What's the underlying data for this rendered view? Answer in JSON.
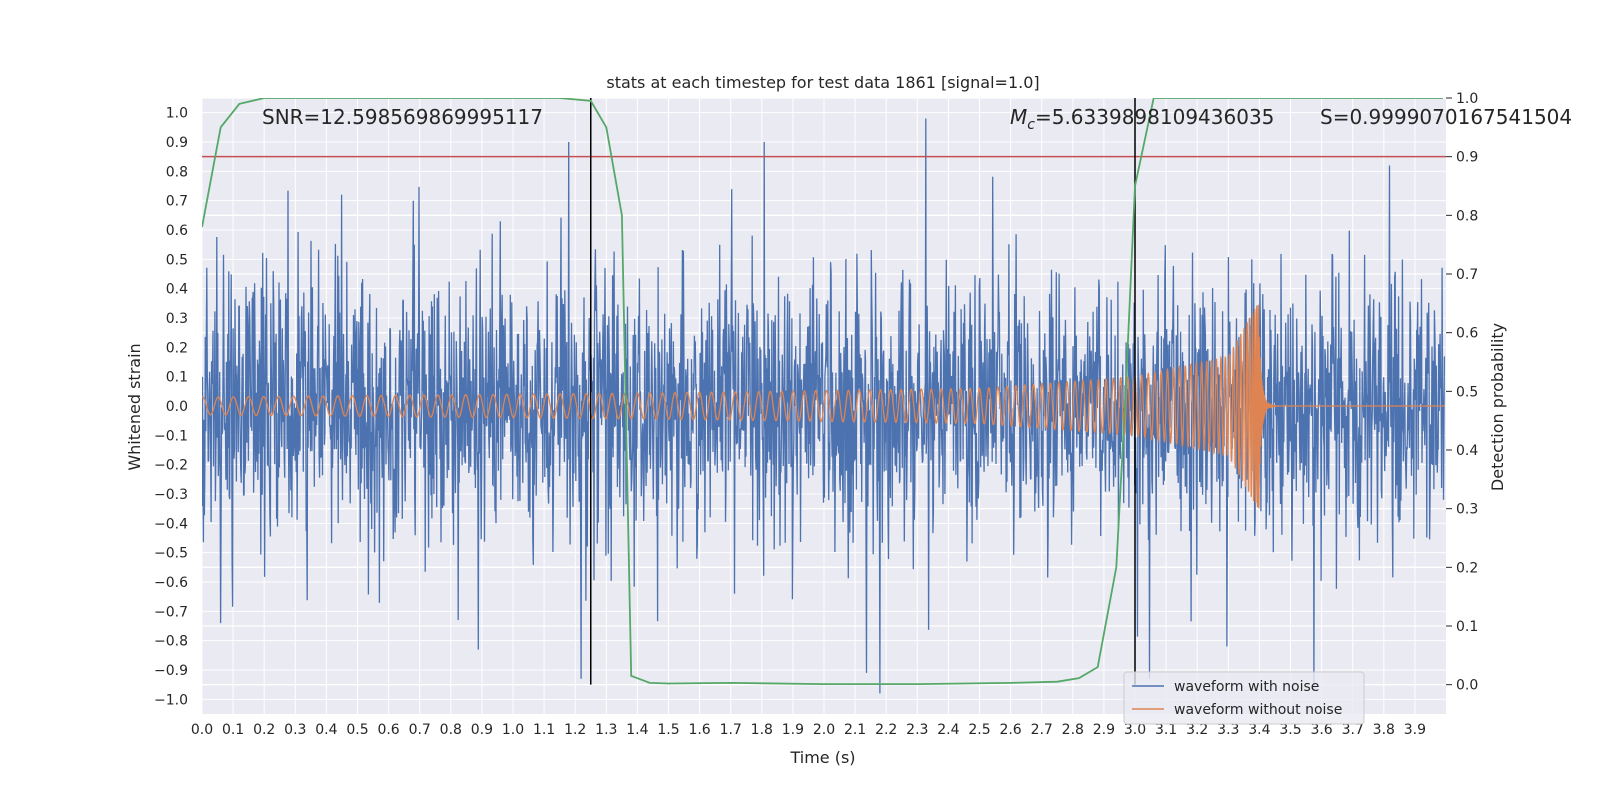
{
  "chart_data": {
    "type": "line",
    "title": "stats at each timestep for test data 1861 [signal=1.0]",
    "xlabel": "Time (s)",
    "ylabel": "Whitened strain",
    "y2label": "Detection probability",
    "xlim": [
      0.0,
      4.0
    ],
    "ylim": [
      -1.05,
      1.05
    ],
    "y2lim": [
      -0.05,
      1.0
    ],
    "xticks": [
      "0.0",
      "0.1",
      "0.2",
      "0.3",
      "0.4",
      "0.5",
      "0.6",
      "0.7",
      "0.8",
      "0.9",
      "1.0",
      "1.1",
      "1.2",
      "1.3",
      "1.4",
      "1.5",
      "1.6",
      "1.7",
      "1.8",
      "1.9",
      "2.0",
      "2.1",
      "2.2",
      "2.3",
      "2.4",
      "2.5",
      "2.6",
      "2.7",
      "2.8",
      "2.9",
      "3.0",
      "3.1",
      "3.2",
      "3.3",
      "3.4",
      "3.5",
      "3.6",
      "3.7",
      "3.8",
      "3.9"
    ],
    "yticks": [
      "1.0",
      "0.9",
      "0.8",
      "0.7",
      "0.6",
      "0.5",
      "0.4",
      "0.3",
      "0.2",
      "0.1",
      "0.0",
      "−0.1",
      "−0.2",
      "−0.3",
      "−0.4",
      "−0.5",
      "−0.6",
      "−0.7",
      "−0.8",
      "−0.9",
      "−1.0"
    ],
    "y2ticks": [
      "1.0",
      "0.9",
      "0.8",
      "0.7",
      "0.6",
      "0.5",
      "0.4",
      "0.3",
      "0.2",
      "0.1",
      "0.0"
    ],
    "grid": true,
    "legend_position": "bottom-right",
    "annotations": {
      "snr": "SNR=12.598569869995117",
      "mc_symbol": "M",
      "mc_sub": "c",
      "mc_value": "=5.6339898109436035",
      "s": "S=0.9999070167541504"
    },
    "threshold": {
      "y2": 0.9,
      "color": "#c44e52"
    },
    "vlines": [
      1.25,
      3.0
    ],
    "series": [
      {
        "name": "waveform with noise",
        "color": "#4c72b0",
        "kind": "noise",
        "envelope_typical": 0.3,
        "spikes": [
          {
            "x": 0.12,
            "y": 0.34
          },
          {
            "x": 0.45,
            "y": 0.72
          },
          {
            "x": 0.68,
            "y": 0.7
          },
          {
            "x": 0.96,
            "y": 0.63
          },
          {
            "x": 1.18,
            "y": 0.9
          },
          {
            "x": 1.81,
            "y": 0.9
          },
          {
            "x": 2.33,
            "y": 1.0
          },
          {
            "x": 3.38,
            "y": 0.5
          },
          {
            "x": 0.06,
            "y": -0.74
          },
          {
            "x": 0.89,
            "y": -0.83
          },
          {
            "x": 1.22,
            "y": -0.93
          },
          {
            "x": 2.14,
            "y": -0.91
          },
          {
            "x": 3.05,
            "y": -0.93
          },
          {
            "x": 3.3,
            "y": -0.82
          },
          {
            "x": 3.58,
            "y": -0.97
          }
        ]
      },
      {
        "name": "waveform without noise",
        "color": "#dd8452",
        "kind": "chirp",
        "points": [
          {
            "x": 0.0,
            "amp": 0.03
          },
          {
            "x": 1.5,
            "amp": 0.045
          },
          {
            "x": 2.5,
            "amp": 0.06
          },
          {
            "x": 3.0,
            "amp": 0.1
          },
          {
            "x": 3.3,
            "amp": 0.17
          },
          {
            "x": 3.4,
            "amp": 0.36
          }
        ],
        "merger_time": 3.4
      },
      {
        "name": "Detection probability",
        "color": "#55a868",
        "axis": "y2",
        "x": [
          0.0,
          0.06,
          0.12,
          0.2,
          0.4,
          0.8,
          1.15,
          1.25,
          1.3,
          1.35,
          1.38,
          1.44,
          1.5,
          1.7,
          2.0,
          2.3,
          2.6,
          2.75,
          2.82,
          2.88,
          2.94,
          2.97,
          3.0,
          3.06,
          3.2,
          3.6,
          3.99
        ],
        "y": [
          0.78,
          0.95,
          0.99,
          1.0,
          1.0,
          1.0,
          1.0,
          0.995,
          0.95,
          0.8,
          0.015,
          0.003,
          0.002,
          0.003,
          0.001,
          0.001,
          0.003,
          0.005,
          0.011,
          0.03,
          0.2,
          0.5,
          0.85,
          1.0,
          1.0,
          1.0,
          1.0
        ]
      }
    ]
  }
}
